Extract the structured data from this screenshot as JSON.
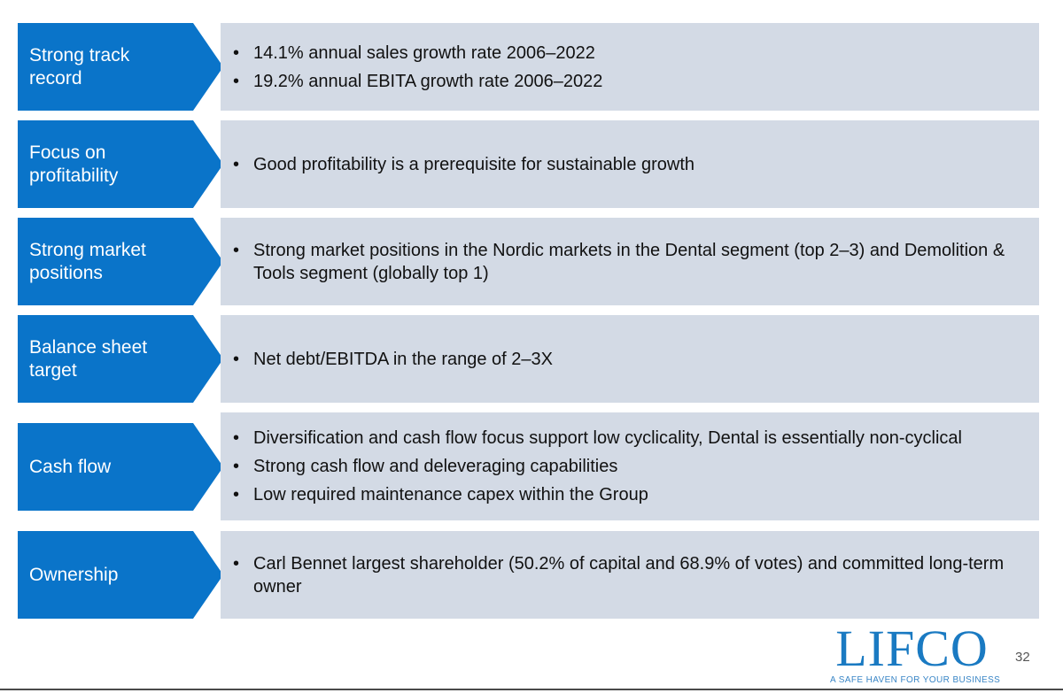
{
  "rows": [
    {
      "label": "Strong track record",
      "bullets": [
        "14.1% annual sales growth rate 2006–2022",
        "19.2% annual EBITA growth rate 2006–2022"
      ]
    },
    {
      "label": "Focus on profitability",
      "bullets": [
        "Good profitability is a prerequisite for sustainable growth"
      ]
    },
    {
      "label": "Strong market positions",
      "bullets": [
        "Strong market positions in the Nordic markets in the Dental segment (top 2–3) and Demolition & Tools segment (globally top 1)"
      ]
    },
    {
      "label": "Balance sheet target",
      "bullets": [
        "Net debt/EBITDA in the range of 2–3X"
      ]
    },
    {
      "label": "Cash flow",
      "bullets": [
        "Diversification and cash flow focus support low cyclicality, Dental is essentially non-cyclical",
        "Strong cash flow and deleveraging capabilities",
        "Low required maintenance capex within the Group"
      ]
    },
    {
      "label": "Ownership",
      "bullets": [
        "Carl Bennet largest shareholder (50.2% of capital and 68.9% of votes) and committed long-term owner"
      ]
    }
  ],
  "bullet_char": "•",
  "logo": {
    "name": "LIFCO",
    "tagline": "A SAFE HAVEN FOR YOUR BUSINESS"
  },
  "page_number": "32",
  "colors": {
    "label_blue": "#0a74c9",
    "content_gray": "#d3dae5",
    "logo_blue": "#1a7ac2"
  }
}
